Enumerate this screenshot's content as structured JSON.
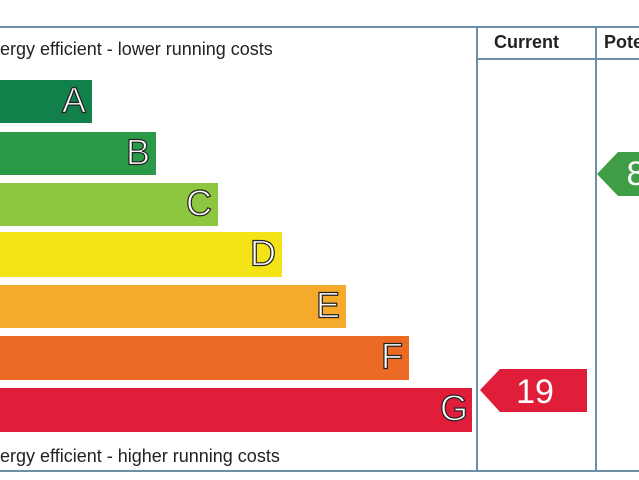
{
  "header": {
    "top_note": "ergy efficient - lower running costs",
    "current": "Current",
    "potential": "Pote"
  },
  "bands": [
    {
      "letter": "A"
    },
    {
      "letter": "B"
    },
    {
      "letter": "C"
    },
    {
      "letter": "D"
    },
    {
      "letter": "E"
    },
    {
      "letter": "F"
    },
    {
      "letter": "G"
    }
  ],
  "ratings": {
    "current": "19",
    "potential": "8"
  },
  "footer": {
    "bottom_note": "ergy efficient - higher running costs"
  }
}
